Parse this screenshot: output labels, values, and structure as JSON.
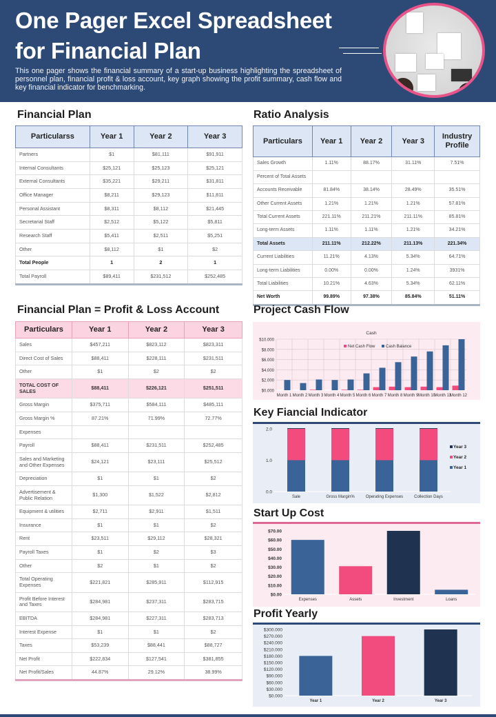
{
  "header": {
    "title_line1": "One Pager Excel Spreadsheet",
    "title_line2": "for Financial Plan",
    "description": "This one pager shows the financial summary of a start-up business highlighting the spreadsheet of personnel plan, financial profit & loss account, key graph showing the profit summary, cash flow and key financial indicator for benchmarking."
  },
  "financial_plan": {
    "title": "Financial Plan",
    "columns": [
      "Particularss",
      "Year 1",
      "Year 2",
      "Year 3"
    ],
    "rows": [
      [
        "Partners",
        "$1",
        "$81,111",
        "$91,911"
      ],
      [
        "Internal Consultants",
        "$25,121",
        "$25,123",
        "$25,121"
      ],
      [
        "External Consultants",
        "$35,221",
        "$29,211",
        "$31,811"
      ],
      [
        "Office Manager",
        "$8,211",
        "$29,123",
        "$11,811"
      ],
      [
        "Personal Assistant",
        "$8,311",
        "$8,112",
        "$21,445"
      ],
      [
        "Secretarial Staff",
        "$2,512",
        "$5,122",
        "$5,811"
      ],
      [
        "Research Staff",
        "$5,411",
        "$2,511",
        "$5,251"
      ],
      [
        "Other",
        "$8,112",
        "$1",
        "$2"
      ],
      [
        "Total People",
        "1",
        "2",
        "1"
      ],
      [
        "Total Payroll",
        "$89,411",
        "$231,512",
        "$252,485"
      ]
    ],
    "bold_rows": [
      8
    ]
  },
  "ratio_analysis": {
    "title": "Ratio Analysis",
    "columns": [
      "Particulars",
      "Year 1",
      "Year 2",
      "Year 3",
      "Industry Profile"
    ],
    "rows": [
      [
        "Sales Growth",
        "1.11%",
        "88.17%",
        "31.11%",
        "7.51%"
      ],
      [
        "Percent of Total Assets",
        "",
        "",
        "",
        ""
      ],
      [
        "Accounts Receivable",
        "81.84%",
        "38.14%",
        "28.49%",
        "35.51%"
      ],
      [
        "Other Current Assets",
        "1.21%",
        "1.21%",
        "1.21%",
        "57.81%"
      ],
      [
        "Total Current Assets",
        "221.11%",
        "211.21%",
        "211.11%",
        "85.81%"
      ],
      [
        "Long-term Assets",
        "1.11%",
        "1.11%",
        "1.21%",
        "34.21%"
      ],
      [
        "Total Assets",
        "211.11%",
        "212.22%",
        "211.13%",
        "221.34%"
      ],
      [
        "Current Liabilities",
        "11.21%",
        "4.13%",
        "5.34%",
        "64.71%"
      ],
      [
        "Long-term Liabilities",
        "0.00%",
        "0.00%",
        "1.24%",
        "3931%"
      ],
      [
        "Total Liabilities",
        "10.21%",
        "4.63%",
        "5.34%",
        "62.11%"
      ],
      [
        "Net Worth",
        "99.89%",
        "97.38%",
        "85.84%",
        "51.11%"
      ]
    ],
    "highlight_rows": [
      6
    ],
    "bold_rows": [
      10
    ]
  },
  "profit_loss": {
    "title": "Financial Plan = Profit & Loss Account",
    "columns": [
      "Particulars",
      "Year 1",
      "Year 2",
      "Year 3"
    ],
    "rows": [
      [
        "Sales",
        "$457,211",
        "$823,112",
        "$823,311"
      ],
      [
        "Direct Cost of Sales",
        "$88,411",
        "$228,111",
        "$231,511"
      ],
      [
        "Other",
        "$1",
        "$2",
        "$2"
      ],
      [
        "TOTAL COST OF SALES",
        "$88,411",
        "$226,121",
        "$251,511"
      ],
      [
        "Gross Margin",
        "$375,711",
        "$584,111",
        "$485,111"
      ],
      [
        "Gross Margin %",
        "87.21%",
        "71.99%",
        "72.77%"
      ],
      [
        "Expenses",
        "",
        "",
        ""
      ],
      [
        "Payroll",
        "$88,411",
        "$231,511",
        "$252,485"
      ],
      [
        "Sales and Marketing and Other Expenses",
        "$24,121",
        "$23,111",
        "$25,512"
      ],
      [
        "Depreciation",
        "$1",
        "$1",
        "$2"
      ],
      [
        "Advertisement & Public Relation",
        "$1,300",
        "$1,522",
        "$2,812"
      ],
      [
        "Equipment & utilities",
        "$2,711",
        "$2,911",
        "$1,511"
      ],
      [
        "Insurance",
        "$1",
        "$1",
        "$2"
      ],
      [
        "Rent",
        "$23,511",
        "$29,112",
        "$28,321"
      ],
      [
        "Payroll Taxes",
        "$1",
        "$2",
        "$3"
      ],
      [
        "Other",
        "$2",
        "$1",
        "$2"
      ],
      [
        "Total Operating Expenses",
        "$221,821",
        "$285,911",
        "$112,915"
      ],
      [
        "Profit Before Interest and Taxes",
        "$284,981",
        "$237,311",
        "$283,715"
      ],
      [
        "EBITDA",
        "$284,981",
        "$227,311",
        "$283,713"
      ],
      [
        "Interest Expense",
        "$1",
        "$1",
        "$2"
      ],
      [
        "Taxes",
        "$53,239",
        "$88,441",
        "$88,727"
      ],
      [
        "Net Profit",
        "$222,834",
        "$127,541",
        "$381,855"
      ],
      [
        "Net Profit/Sales",
        "44.87%",
        "29.12%",
        "38.99%"
      ]
    ],
    "highlight_rows": [
      3
    ]
  },
  "colors": {
    "navy": "#2d4a77",
    "blue": "#3a6398",
    "pink": "#f24c7f",
    "dark": "#1f3350",
    "pink_bg": "#fcebf1",
    "blue_bg": "#e9eef6"
  },
  "chart_data": [
    {
      "id": "cash",
      "section_title": "Project Cash Flow",
      "type": "bar",
      "title": "Cash",
      "categories": [
        "Month 1",
        "Month 2",
        "Month 3",
        "Month 4",
        "Month 5",
        "Month 6",
        "Month 7",
        "Month 8",
        "Month 9",
        "Month 10",
        "Month 11",
        "Month 12"
      ],
      "series": [
        {
          "name": "Net Cash Flow",
          "color": "#f24c7f",
          "values": [
            0,
            0,
            100,
            0,
            100,
            100,
            600,
            700,
            600,
            700,
            600,
            900
          ]
        },
        {
          "name": "Cash Balance",
          "color": "#3a6398",
          "values": [
            2000,
            1400,
            2100,
            2000,
            2100,
            3300,
            4400,
            5500,
            6600,
            7600,
            8800,
            10000
          ]
        }
      ],
      "ylim": [
        0,
        10000
      ],
      "yticks": [
        "$0.000",
        "$2.000",
        "$4.000",
        "$6.000",
        "$8.000",
        "$10.000"
      ],
      "grid": true,
      "legend": "top"
    },
    {
      "id": "kfi",
      "section_title": "Key Fiancial Indicator",
      "type": "stacked-bar",
      "categories": [
        "Sale",
        "Gross Margin%",
        "Operating Expenses",
        "Collection Days"
      ],
      "series": [
        {
          "name": "Year 1",
          "color": "#3a6398",
          "values": [
            1,
            1,
            1,
            1
          ]
        },
        {
          "name": "Year 2",
          "color": "#f24c7f",
          "values": [
            1,
            1,
            1,
            1
          ]
        },
        {
          "name": "Year 3",
          "color": "#1f3350",
          "values": [
            0.02,
            0.02,
            0.02,
            0.02
          ]
        }
      ],
      "ylim": [
        0,
        2
      ],
      "yticks": [
        "0.0",
        "1.0",
        "2.0"
      ],
      "legend": "right"
    },
    {
      "id": "startup",
      "section_title": "Start Up Cost",
      "type": "bar",
      "categories": [
        "Expenses",
        "Assets",
        "Investment",
        "Loans"
      ],
      "values": [
        60,
        31,
        70,
        5
      ],
      "colors": [
        "#3a6398",
        "#f24c7f",
        "#1f3350",
        "#3a6398"
      ],
      "ylim": [
        0,
        70
      ],
      "yticks": [
        "$0.00",
        "$10.00",
        "$20.00",
        "$30.00",
        "$40.00",
        "$50.00",
        "$60.00",
        "$70.00"
      ]
    },
    {
      "id": "profit",
      "section_title": "Profit Yearly",
      "type": "bar",
      "categories": [
        "Year 1",
        "Year 2",
        "Year 3"
      ],
      "values": [
        180000,
        270000,
        300000
      ],
      "colors": [
        "#3a6398",
        "#f24c7f",
        "#1f3350"
      ],
      "ylim": [
        0,
        300000
      ],
      "yticks": [
        "$0.000",
        "$30.000",
        "$60.000",
        "$90.000",
        "$120.000",
        "$150.000",
        "$180.000",
        "$210.000",
        "$240.000",
        "$270.000",
        "$300.000"
      ]
    }
  ]
}
